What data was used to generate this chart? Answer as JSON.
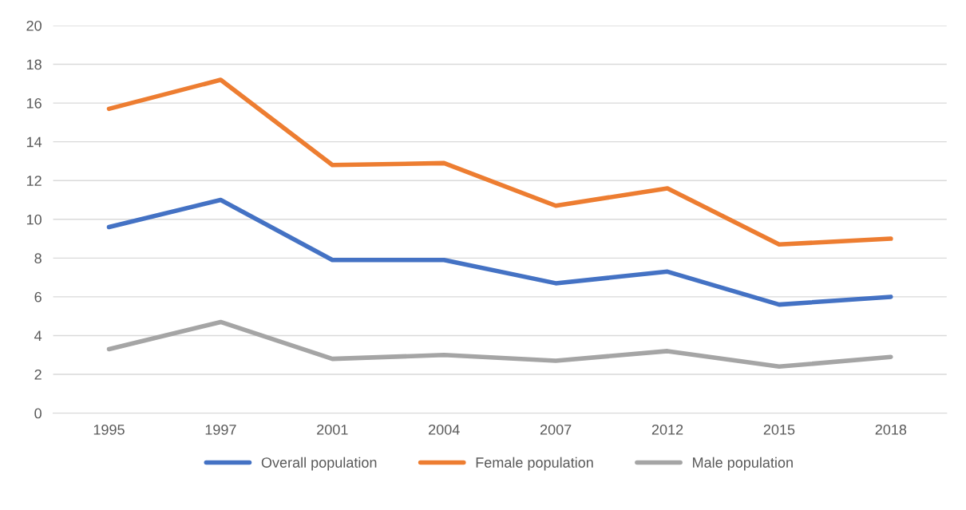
{
  "chart_data": {
    "type": "line",
    "categories": [
      "1995",
      "1997",
      "2001",
      "2004",
      "2007",
      "2012",
      "2015",
      "2018"
    ],
    "series": [
      {
        "name": "Overall population",
        "color": "#4472c4",
        "values": [
          9.6,
          11.0,
          7.9,
          7.9,
          6.7,
          7.3,
          5.6,
          6.0
        ]
      },
      {
        "name": "Female population",
        "color": "#ed7d31",
        "values": [
          15.7,
          17.2,
          12.8,
          12.9,
          10.7,
          11.6,
          8.7,
          9.0
        ]
      },
      {
        "name": "Male population",
        "color": "#a5a5a5",
        "values": [
          3.3,
          4.7,
          2.8,
          3.0,
          2.7,
          3.2,
          2.4,
          2.9
        ]
      }
    ],
    "ylim": [
      0,
      20
    ],
    "yticks": [
      0,
      2,
      4,
      6,
      8,
      10,
      12,
      14,
      16,
      18,
      20
    ],
    "grid": "y",
    "legend": "bottom",
    "marker": "none",
    "line_style": "solid"
  }
}
